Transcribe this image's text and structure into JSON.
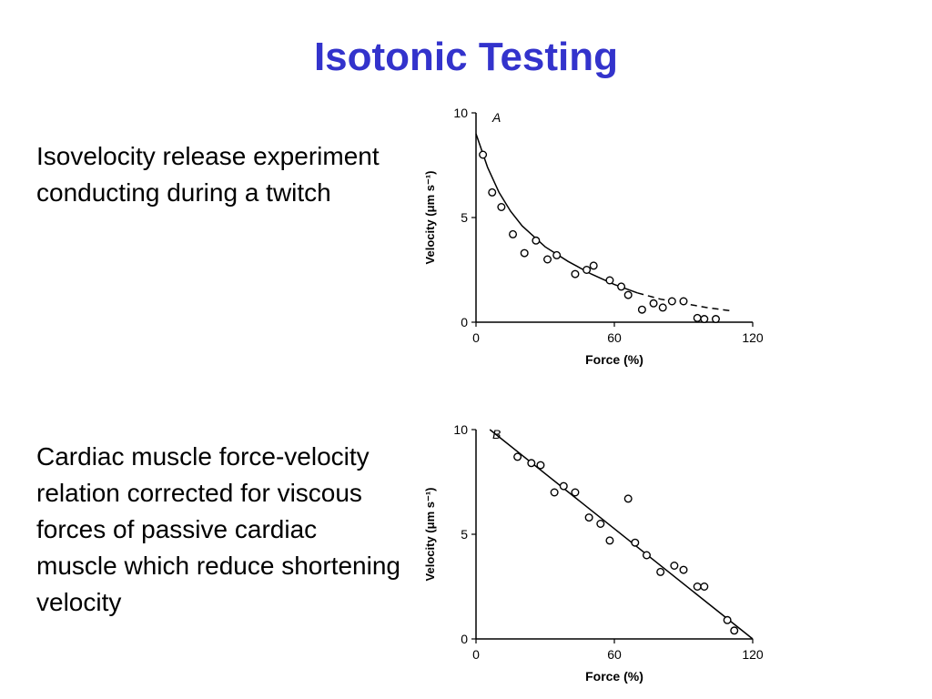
{
  "slide": {
    "title": "Isotonic Testing",
    "title_color": "#3333cc"
  },
  "captions": {
    "a": "Isovelocity release experiment conducting during a twitch",
    "b": "Cardiac muscle force-velocity relation corrected for viscous forces of passive cardiac muscle which reduce shortening velocity"
  },
  "chart_data": [
    {
      "type": "scatter",
      "panel_label": "A",
      "xlabel": "Force (%)",
      "ylabel": "Velocity (μm s⁻¹)",
      "xlim": [
        0,
        120
      ],
      "ylim": [
        0,
        10
      ],
      "xticks": [
        "0",
        "60",
        "120"
      ],
      "yticks": [
        "0",
        "5",
        "10"
      ],
      "grid": false,
      "points": [
        {
          "x": 3,
          "y": 8.0
        },
        {
          "x": 7,
          "y": 6.2
        },
        {
          "x": 11,
          "y": 5.5
        },
        {
          "x": 16,
          "y": 4.2
        },
        {
          "x": 21,
          "y": 3.3
        },
        {
          "x": 26,
          "y": 3.9
        },
        {
          "x": 31,
          "y": 3.0
        },
        {
          "x": 35,
          "y": 3.2
        },
        {
          "x": 43,
          "y": 2.3
        },
        {
          "x": 48,
          "y": 2.5
        },
        {
          "x": 51,
          "y": 2.7
        },
        {
          "x": 58,
          "y": 2.0
        },
        {
          "x": 63,
          "y": 1.7
        },
        {
          "x": 66,
          "y": 1.3
        },
        {
          "x": 72,
          "y": 0.6
        },
        {
          "x": 77,
          "y": 0.9
        },
        {
          "x": 81,
          "y": 0.7
        },
        {
          "x": 85,
          "y": 1.0
        },
        {
          "x": 90,
          "y": 1.0
        },
        {
          "x": 96,
          "y": 0.2
        },
        {
          "x": 99,
          "y": 0.15
        },
        {
          "x": 104,
          "y": 0.15
        }
      ],
      "fit_curve": [
        {
          "x": 0,
          "y": 9.0
        },
        {
          "x": 5,
          "y": 7.4
        },
        {
          "x": 10,
          "y": 6.2
        },
        {
          "x": 15,
          "y": 5.3
        },
        {
          "x": 20,
          "y": 4.6
        },
        {
          "x": 30,
          "y": 3.6
        },
        {
          "x": 40,
          "y": 2.9
        },
        {
          "x": 50,
          "y": 2.3
        },
        {
          "x": 60,
          "y": 1.8
        },
        {
          "x": 70,
          "y": 1.4
        }
      ],
      "fit_extrapolation": [
        {
          "x": 70,
          "y": 1.4
        },
        {
          "x": 80,
          "y": 1.1
        },
        {
          "x": 90,
          "y": 0.9
        },
        {
          "x": 100,
          "y": 0.7
        },
        {
          "x": 110,
          "y": 0.55
        }
      ]
    },
    {
      "type": "scatter",
      "panel_label": "B",
      "xlabel": "Force (%)",
      "ylabel": "Velocity (μm s⁻¹)",
      "xlim": [
        0,
        120
      ],
      "ylim": [
        0,
        10
      ],
      "xticks": [
        "0",
        "60",
        "120"
      ],
      "yticks": [
        "0",
        "5",
        "10"
      ],
      "grid": false,
      "points": [
        {
          "x": 18,
          "y": 8.7
        },
        {
          "x": 24,
          "y": 8.4
        },
        {
          "x": 28,
          "y": 8.3
        },
        {
          "x": 34,
          "y": 7.0
        },
        {
          "x": 38,
          "y": 7.3
        },
        {
          "x": 43,
          "y": 7.0
        },
        {
          "x": 49,
          "y": 5.8
        },
        {
          "x": 54,
          "y": 5.5
        },
        {
          "x": 58,
          "y": 4.7
        },
        {
          "x": 66,
          "y": 6.7
        },
        {
          "x": 69,
          "y": 4.6
        },
        {
          "x": 74,
          "y": 4.0
        },
        {
          "x": 80,
          "y": 3.2
        },
        {
          "x": 86,
          "y": 3.5
        },
        {
          "x": 90,
          "y": 3.3
        },
        {
          "x": 96,
          "y": 2.5
        },
        {
          "x": 99,
          "y": 2.5
        },
        {
          "x": 109,
          "y": 0.9
        },
        {
          "x": 112,
          "y": 0.4
        }
      ],
      "fit_line": [
        {
          "x": 6,
          "y": 10.0
        },
        {
          "x": 120,
          "y": 0.0
        }
      ]
    }
  ]
}
